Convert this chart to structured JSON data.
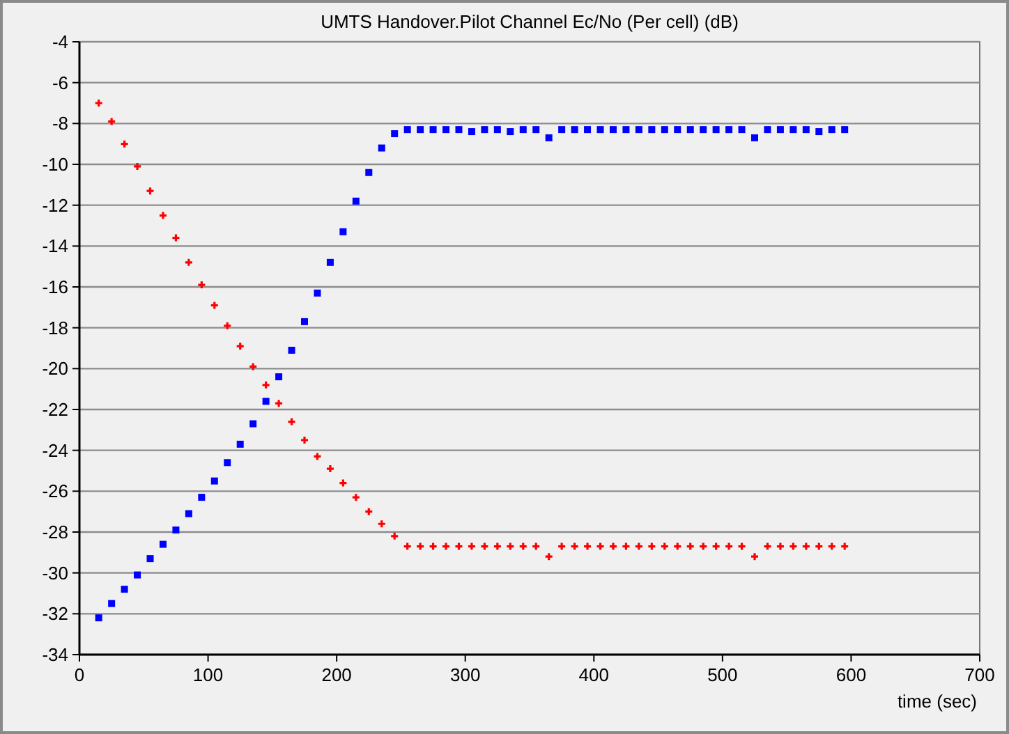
{
  "chart_data": {
    "type": "scatter",
    "title": "UMTS Handover.Pilot Channel Ec/No (Per cell) (dB)",
    "xlabel": "time (sec)",
    "x": [
      15,
      25,
      35,
      45,
      55,
      65,
      75,
      85,
      95,
      105,
      115,
      125,
      135,
      145,
      155,
      165,
      175,
      185,
      195,
      205,
      215,
      225,
      235,
      245,
      255,
      265,
      275,
      285,
      295,
      305,
      315,
      325,
      335,
      345,
      355,
      365,
      375,
      385,
      395,
      405,
      415,
      425,
      435,
      445,
      455,
      465,
      475,
      485,
      495,
      505,
      515,
      525,
      535,
      545,
      555,
      565,
      575,
      585,
      595
    ],
    "series": [
      {
        "color": "#0000ff",
        "marker": "square",
        "values": [
          -32.2,
          -31.5,
          -30.8,
          -30.1,
          -29.3,
          -28.6,
          -27.9,
          -27.1,
          -26.3,
          -25.5,
          -24.6,
          -23.7,
          -22.7,
          -21.6,
          -20.4,
          -19.1,
          -17.7,
          -16.3,
          -14.8,
          -13.3,
          -11.8,
          -10.4,
          -9.2,
          -8.5,
          -8.3,
          -8.3,
          -8.3,
          -8.3,
          -8.3,
          -8.4,
          -8.3,
          -8.3,
          -8.4,
          -8.3,
          -8.3,
          -8.7,
          -8.3,
          -8.3,
          -8.3,
          -8.3,
          -8.3,
          -8.3,
          -8.3,
          -8.3,
          -8.3,
          -8.3,
          -8.3,
          -8.3,
          -8.3,
          -8.3,
          -8.3,
          -8.7,
          -8.3,
          -8.3,
          -8.3,
          -8.3,
          -8.4,
          -8.3,
          -8.3
        ]
      },
      {
        "color": "#ff0000",
        "marker": "cross",
        "values": [
          -7,
          -7.9,
          -9.0,
          -10.1,
          -11.3,
          -12.5,
          -13.6,
          -14.8,
          -15.9,
          -16.9,
          -17.9,
          -18.9,
          -19.9,
          -20.8,
          -21.7,
          -22.6,
          -23.5,
          -24.3,
          -24.9,
          -25.6,
          -26.3,
          -27,
          -27.6,
          -28.2,
          -28.7,
          -28.7,
          -28.7,
          -28.7,
          -28.7,
          -28.7,
          -28.7,
          -28.7,
          -28.7,
          -28.7,
          -28.7,
          -29.2,
          -28.7,
          -28.7,
          -28.7,
          -28.7,
          -28.7,
          -28.7,
          -28.7,
          -28.7,
          -28.7,
          -28.7,
          -28.7,
          -28.7,
          -28.7,
          -28.7,
          -28.7,
          -29.2,
          -28.7,
          -28.7,
          -28.7,
          -28.7,
          -28.7,
          -28.7,
          -28.7
        ]
      }
    ],
    "xlim": [
      0,
      700
    ],
    "xticks": [
      0,
      100,
      200,
      300,
      400,
      500,
      600,
      700
    ],
    "ylim": [
      -34,
      -4
    ],
    "yticks": [
      -34,
      -32,
      -30,
      -28,
      -26,
      -24,
      -22,
      -20,
      -18,
      -16,
      -14,
      -12,
      -10,
      -8,
      -6,
      -4
    ],
    "grid": "y"
  }
}
